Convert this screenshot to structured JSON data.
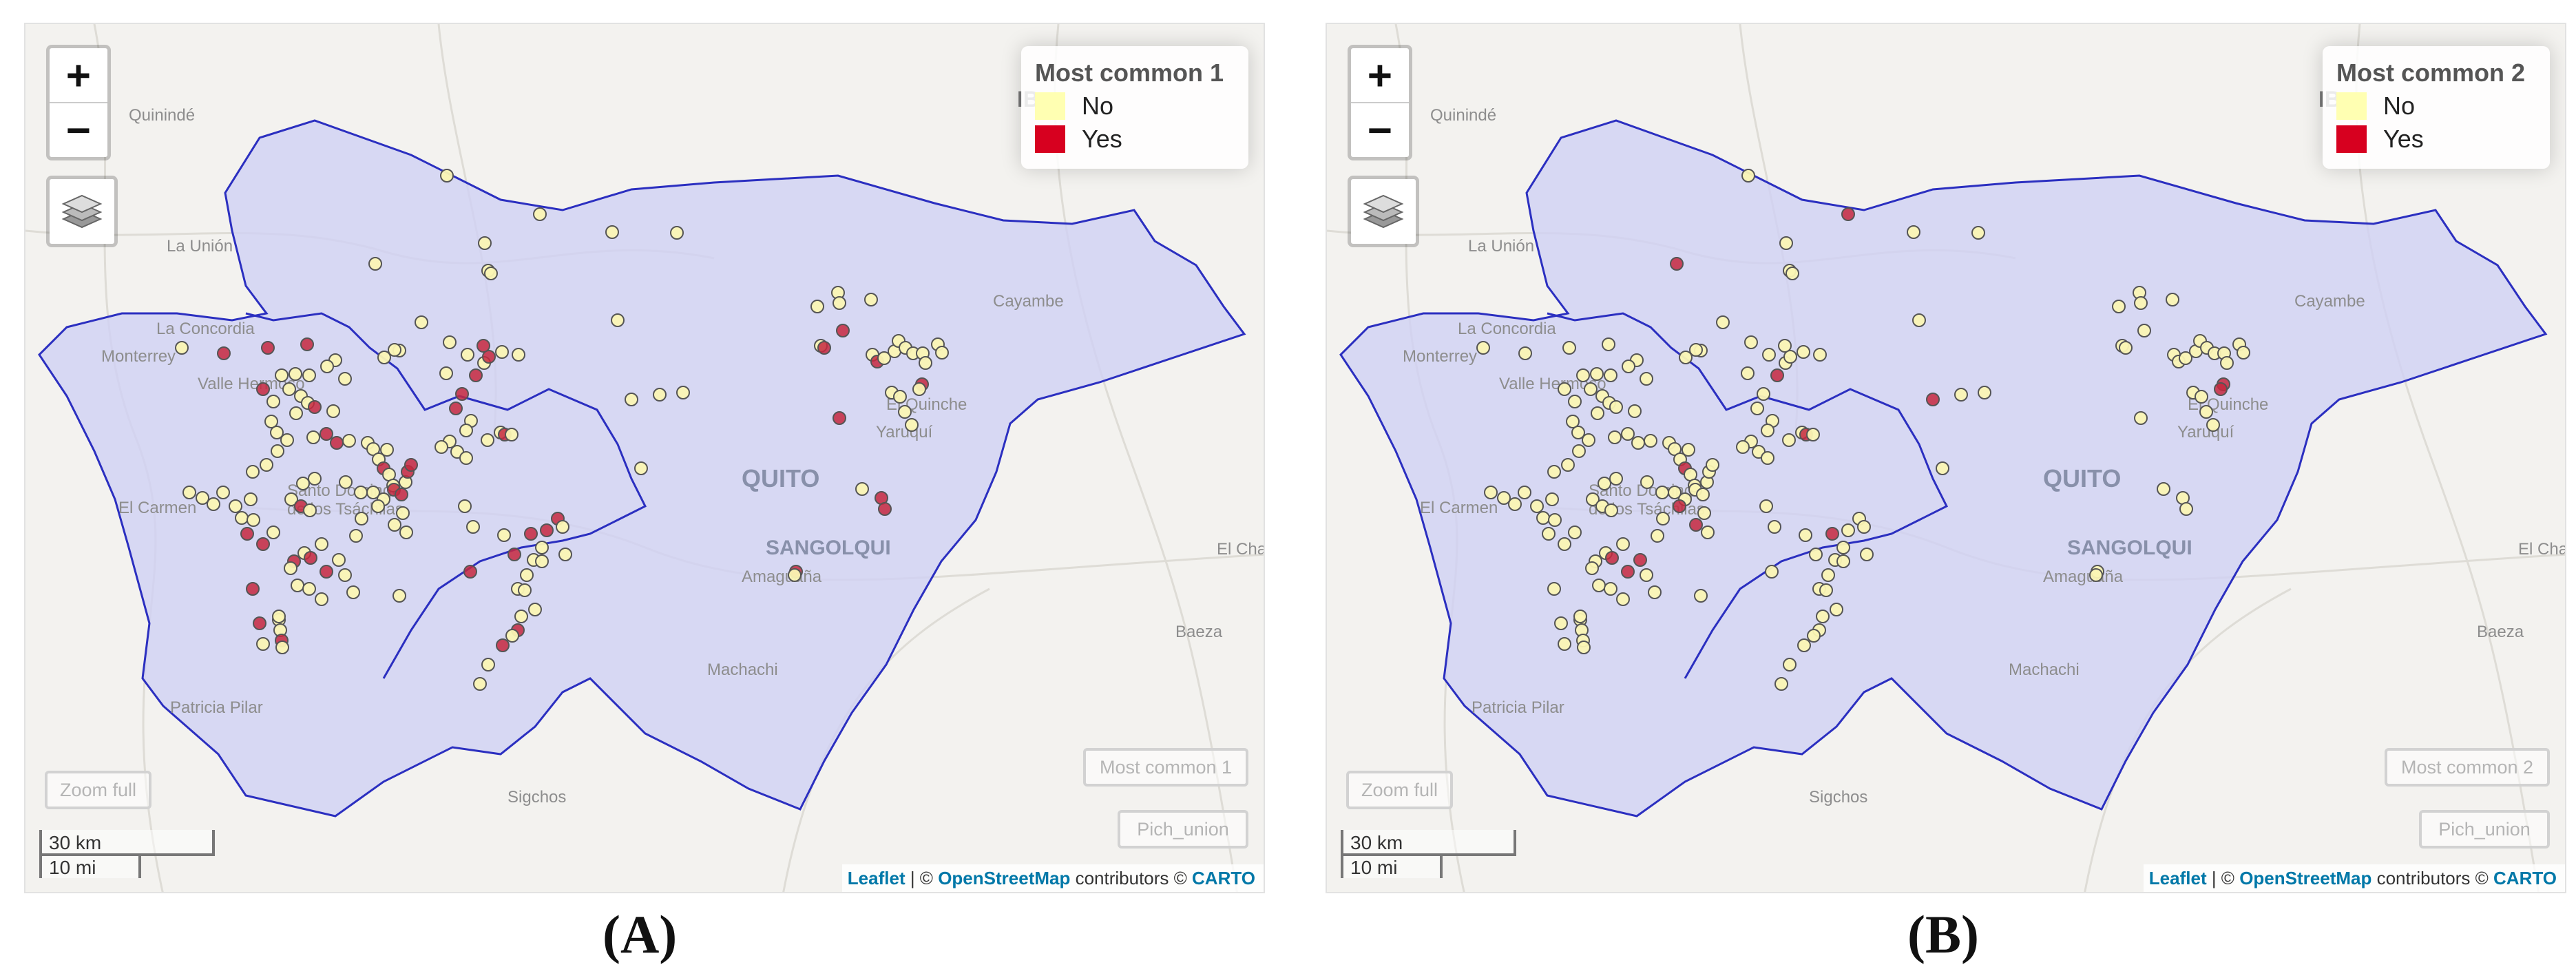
{
  "panels": [
    {
      "id": "A",
      "caption": "(A)",
      "legend": {
        "title": "Most common 1",
        "items": [
          {
            "label": "No",
            "color": "#ffffb2"
          },
          {
            "label": "Yes",
            "color": "#d7001f"
          }
        ]
      },
      "controls": {
        "zoom_in": "+",
        "zoom_out": "−",
        "layers_icon": "layers-icon",
        "zoom_full": "Zoom full",
        "layer_toggle": "Most common 1",
        "union_toggle": "Pich_union"
      },
      "scale": {
        "km": "30 km",
        "mi": "10 mi"
      },
      "attribution": {
        "leaflet": "Leaflet",
        "sep": " | © ",
        "osm": "OpenStreetMap",
        "rest": " contributors © ",
        "carto": "CARTO"
      }
    },
    {
      "id": "B",
      "caption": "(B)",
      "legend": {
        "title": "Most common 2",
        "items": [
          {
            "label": "No",
            "color": "#ffffb2"
          },
          {
            "label": "Yes",
            "color": "#d7001f"
          }
        ]
      },
      "controls": {
        "zoom_in": "+",
        "zoom_out": "−",
        "layers_icon": "layers-icon",
        "zoom_full": "Zoom full",
        "layer_toggle": "Most common 2",
        "union_toggle": "Pich_union"
      },
      "scale": {
        "km": "30 km",
        "mi": "10 mi"
      },
      "attribution": {
        "leaflet": "Leaflet",
        "sep": " | © ",
        "osm": "OpenStreetMap",
        "rest": " contributors © ",
        "carto": "CARTO"
      }
    }
  ],
  "places": [
    "Quinindé",
    "La Unión",
    "La Concordia",
    "Monterrey",
    "Valle Hermoso",
    "Santo Domingo de los Tsáchilas",
    "El Carmen",
    "Patricia Pilar",
    "Sigchos",
    "Machachi",
    "Amaguaña",
    "SANGOLQUI",
    "QUITO",
    "Yaruquí",
    "El Quinche",
    "Cayambe",
    "IB",
    "El Chaco",
    "Baeza"
  ],
  "map_colors": {
    "basin_fill": "#cfd1f4",
    "basin_stroke": "#2b2fc0",
    "yes": "#c6283e",
    "no": "#fbf6b4",
    "marker_stroke": "#555555"
  }
}
